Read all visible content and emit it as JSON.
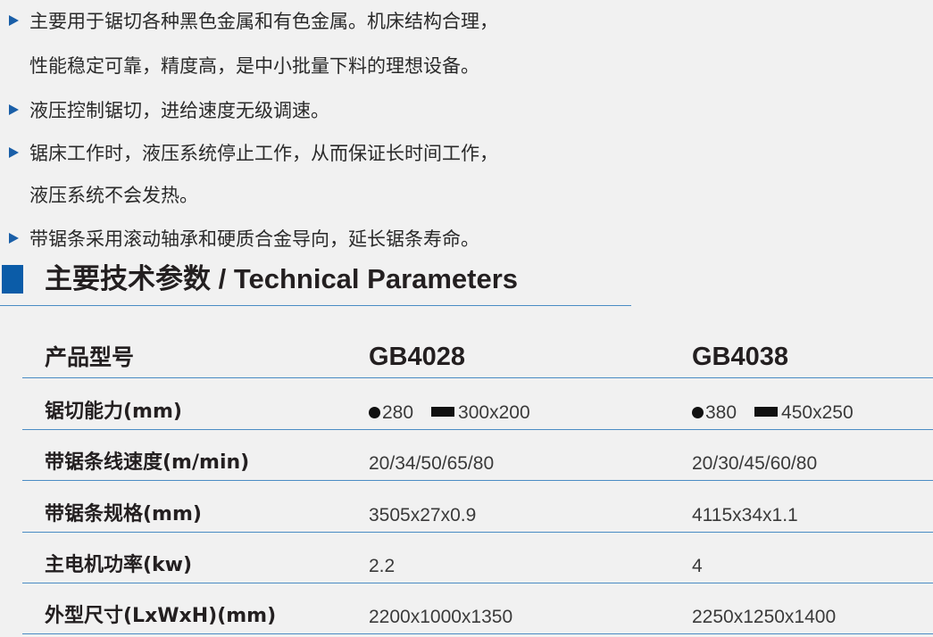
{
  "features": [
    {
      "lines": [
        "主要用于锯切各种黑色金属和有色金属。机床结构合理，",
        "性能稳定可靠，精度高，是中小批量下料的理想设备。"
      ]
    },
    {
      "lines": [
        "液压控制锯切，进给速度无级调速。"
      ]
    },
    {
      "lines": [
        "锯床工作时，液压系统停止工作，从而保证长时间工作，",
        "液压系统不会发热。"
      ]
    },
    {
      "lines": [
        "带锯条采用滚动轴承和硬质合金导向，延长锯条寿命。"
      ]
    }
  ],
  "section_title": "主要技术参数 / Technical Parameters",
  "accent_color": "#0b5ca8",
  "table": {
    "header": {
      "label": "产品型号",
      "models": [
        "GB4028",
        "GB4038"
      ]
    },
    "capacity": {
      "label": "锯切能力(mm)",
      "round": [
        "280",
        "380"
      ],
      "rect": [
        "300x200",
        "450x250"
      ]
    },
    "rows": [
      {
        "label": "带锯条线速度(m/min)",
        "values": [
          "20/34/50/65/80",
          "20/30/45/60/80"
        ]
      },
      {
        "label": "带锯条规格(mm)",
        "values": [
          "3505x27x0.9",
          "4115x34x1.1"
        ]
      },
      {
        "label": "主电机功率(kw)",
        "values": [
          "2.2",
          "4"
        ]
      },
      {
        "label": "外型尺寸(LxWxH)(mm)",
        "values": [
          "2200x1000x1350",
          "2250x1250x1400"
        ]
      }
    ]
  }
}
